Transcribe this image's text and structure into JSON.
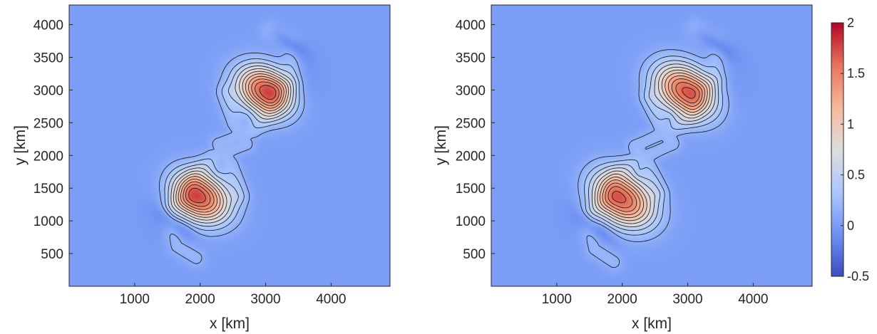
{
  "chart_data": [
    {
      "type": "contour",
      "title": "",
      "xlabel": "x [km]",
      "ylabel": "y [km]",
      "xlim": [
        0,
        4900
      ],
      "ylim": [
        0,
        4300
      ],
      "xticks": [
        "1000",
        "2000",
        "3000",
        "4000"
      ],
      "xtick_values": [
        1000,
        2000,
        3000,
        4000
      ],
      "yticks": [
        "500",
        "1000",
        "1500",
        "2000",
        "2500",
        "3000",
        "3500",
        "4000"
      ],
      "ytick_values": [
        500,
        1000,
        1500,
        2000,
        2500,
        3000,
        3500,
        4000
      ],
      "background_value": 0,
      "vortices": [
        {
          "x": 2000,
          "y": 1360,
          "peak": 1.7,
          "angle": -30,
          "sx": 330,
          "sy": 250
        },
        {
          "x": 2990,
          "y": 2990,
          "peak": 1.7,
          "angle": -30,
          "sx": 320,
          "sy": 240
        }
      ],
      "arm": {
        "path": [
          [
            2600,
            1400
          ],
          [
            2480,
            1860
          ],
          [
            2280,
            2180
          ],
          [
            2800,
            2370
          ],
          [
            3050,
            2640
          ],
          [
            3180,
            2990
          ],
          [
            3420,
            3150
          ],
          [
            3400,
            3520
          ],
          [
            3350,
            3740
          ],
          [
            3050,
            3920
          ]
        ],
        "mirror_center": [
          2495,
          2175
        ],
        "value": 0.2
      },
      "negative_lobes": [
        {
          "x": 3350,
          "y": 3720,
          "value": -0.3,
          "rx": 220,
          "ry": 80,
          "angle": -35
        },
        {
          "x": 3600,
          "y": 3050,
          "value": -0.1,
          "rx": 180,
          "ry": 330,
          "angle": 0
        },
        {
          "x": 1640,
          "y": 930,
          "value": -0.3,
          "rx": 220,
          "ry": 80,
          "angle": -35
        },
        {
          "x": 1400,
          "y": 1300,
          "value": -0.1,
          "rx": 180,
          "ry": 330,
          "angle": 0
        }
      ],
      "contour_interval": 0.15
    },
    {
      "type": "contour",
      "title": "",
      "xlabel": "x [km]",
      "ylabel": "y [km]",
      "xlim": [
        0,
        4900
      ],
      "ylim": [
        0,
        4300
      ],
      "xticks": [
        "1000",
        "2000",
        "3000",
        "4000"
      ],
      "xtick_values": [
        1000,
        2000,
        3000,
        4000
      ],
      "yticks": [
        "500",
        "1000",
        "1500",
        "2000",
        "2500",
        "3000",
        "3500",
        "4000"
      ],
      "ytick_values": [
        500,
        1000,
        1500,
        2000,
        2500,
        3000,
        3500,
        4000
      ],
      "background_value": 0,
      "vortices": [
        {
          "x": 2010,
          "y": 1330,
          "peak": 1.65,
          "angle": -35,
          "sx": 360,
          "sy": 260
        },
        {
          "x": 2960,
          "y": 2990,
          "peak": 1.65,
          "angle": -35,
          "sx": 350,
          "sy": 250
        }
      ],
      "arm": {
        "path": [
          [
            2550,
            1450
          ],
          [
            2380,
            1900
          ],
          [
            2200,
            2150
          ],
          [
            2750,
            2390
          ],
          [
            3050,
            2600
          ],
          [
            3160,
            2950
          ],
          [
            3450,
            3200
          ],
          [
            3450,
            3530
          ],
          [
            3400,
            3750
          ],
          [
            3100,
            3950
          ]
        ],
        "mirror_center": [
          2485,
          2160
        ],
        "value": 0.2
      },
      "negative_lobes": [
        {
          "x": 3400,
          "y": 3720,
          "value": -0.3,
          "rx": 240,
          "ry": 80,
          "angle": -35
        },
        {
          "x": 3700,
          "y": 3050,
          "value": -0.05,
          "rx": 200,
          "ry": 380,
          "angle": 0
        },
        {
          "x": 1600,
          "y": 880,
          "value": -0.3,
          "rx": 240,
          "ry": 80,
          "angle": -35
        },
        {
          "x": 1300,
          "y": 1320,
          "value": -0.05,
          "rx": 200,
          "ry": 380,
          "angle": 0
        }
      ],
      "contour_interval": 0.15
    }
  ],
  "colorbar": {
    "range": [
      -0.5,
      2
    ],
    "ticks": [
      "-0.5",
      "0",
      "0.5",
      "1",
      "1.5",
      "2"
    ],
    "tick_values": [
      -0.5,
      0,
      0.5,
      1,
      1.5,
      2
    ],
    "colormap": [
      "#3b4cc0",
      "#6f92f3",
      "#aac7fd",
      "#dddddd",
      "#f7b89c",
      "#e7745b",
      "#b40426"
    ]
  }
}
